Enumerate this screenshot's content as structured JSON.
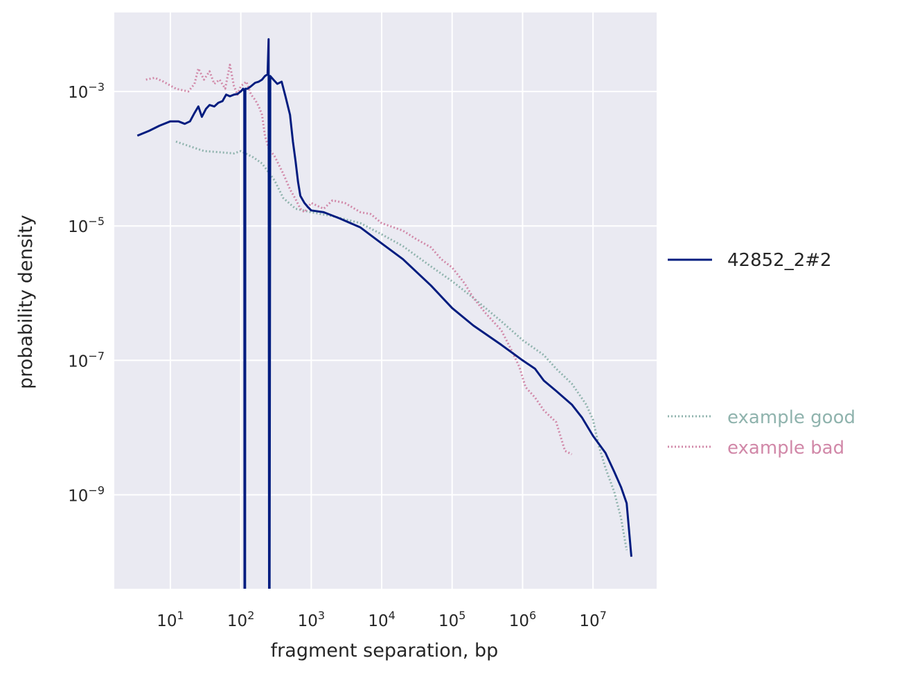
{
  "chart_data": {
    "type": "line",
    "title": "",
    "xlabel": "fragment separation, bp",
    "ylabel": "probability density",
    "xscale": "log",
    "yscale": "log",
    "xlim": [
      1.6,
      80000000
    ],
    "ylim": [
      4e-11,
      0.015
    ],
    "grid": true,
    "background": "#eaeaf2",
    "xticks": [
      {
        "value": 10,
        "base": "10",
        "exp": "1"
      },
      {
        "value": 100,
        "base": "10",
        "exp": "2"
      },
      {
        "value": 1000,
        "base": "10",
        "exp": "3"
      },
      {
        "value": 10000,
        "base": "10",
        "exp": "4"
      },
      {
        "value": 100000,
        "base": "10",
        "exp": "5"
      },
      {
        "value": 1000000,
        "base": "10",
        "exp": "6"
      },
      {
        "value": 10000000,
        "base": "10",
        "exp": "7"
      }
    ],
    "yticks": [
      {
        "value": 0.001,
        "base": "10",
        "exp": "−3"
      },
      {
        "value": 1e-05,
        "base": "10",
        "exp": "−5"
      },
      {
        "value": 1e-07,
        "base": "10",
        "exp": "−7"
      },
      {
        "value": 1e-09,
        "base": "10",
        "exp": "−9"
      }
    ],
    "series": [
      {
        "name": "42852_2#2",
        "color": "#001c7f",
        "style": "solid",
        "legend_position": "right-middle",
        "points": [
          [
            3.4,
            0.00022
          ],
          [
            5,
            0.00026
          ],
          [
            7,
            0.00031
          ],
          [
            10,
            0.00036
          ],
          [
            13,
            0.00036
          ],
          [
            16,
            0.00033
          ],
          [
            19,
            0.00036
          ],
          [
            22,
            0.00048
          ],
          [
            25,
            0.0006
          ],
          [
            28,
            0.00042
          ],
          [
            32,
            0.00055
          ],
          [
            36,
            0.00063
          ],
          [
            42,
            0.0006
          ],
          [
            48,
            0.00068
          ],
          [
            55,
            0.00072
          ],
          [
            62,
            0.0009
          ],
          [
            70,
            0.00085
          ],
          [
            80,
            0.0009
          ],
          [
            90,
            0.00092
          ],
          [
            100,
            0.001
          ],
          [
            108,
            0.0011
          ],
          [
            112,
            0.001
          ],
          [
            113,
            4e-11
          ],
          [
            115,
            4e-11
          ],
          [
            116,
            0.0011
          ],
          [
            125,
            0.0011
          ],
          [
            140,
            0.0012
          ],
          [
            160,
            0.00135
          ],
          [
            180,
            0.0014
          ],
          [
            200,
            0.0015
          ],
          [
            220,
            0.0017
          ],
          [
            240,
            0.0018
          ],
          [
            248,
            0.006
          ],
          [
            252,
            4e-11
          ],
          [
            256,
            4e-11
          ],
          [
            262,
            0.0017
          ],
          [
            290,
            0.0015
          ],
          [
            330,
            0.0013
          ],
          [
            380,
            0.0014
          ],
          [
            430,
            0.00085
          ],
          [
            500,
            0.00045
          ],
          [
            550,
            0.00018
          ],
          [
            600,
            9e-05
          ],
          [
            650,
            4.5e-05
          ],
          [
            700,
            2.8e-05
          ],
          [
            800,
            2.2e-05
          ],
          [
            900,
            1.9e-05
          ],
          [
            1000,
            1.7e-05
          ],
          [
            1500,
            1.6e-05
          ],
          [
            2500,
            1.3e-05
          ],
          [
            5000,
            9.5e-06
          ],
          [
            10000,
            5.5e-06
          ],
          [
            20000,
            3.2e-06
          ],
          [
            50000,
            1.3e-06
          ],
          [
            100000,
            6e-07
          ],
          [
            200000,
            3.3e-07
          ],
          [
            500000,
            1.7e-07
          ],
          [
            1000000,
            1e-07
          ],
          [
            1500000,
            7.5e-08
          ],
          [
            2000000,
            5e-08
          ],
          [
            3000000,
            3.5e-08
          ],
          [
            5000000,
            2.2e-08
          ],
          [
            7000000,
            1.4e-08
          ],
          [
            10000000,
            7.5e-09
          ],
          [
            15000000,
            4.2e-09
          ],
          [
            20000000,
            2.2e-09
          ],
          [
            25000000,
            1.3e-09
          ],
          [
            30000000,
            7.5e-10
          ],
          [
            35000000,
            1.2e-10
          ]
        ]
      },
      {
        "name": "example good",
        "color": "#8fb3ad",
        "style": "dotted",
        "legend_position": "right-lower",
        "points": [
          [
            12,
            0.00018
          ],
          [
            20,
            0.00015
          ],
          [
            30,
            0.00013
          ],
          [
            50,
            0.000125
          ],
          [
            80,
            0.00012
          ],
          [
            100,
            0.00013
          ],
          [
            150,
            0.000105
          ],
          [
            200,
            8.5e-05
          ],
          [
            300,
            4.8e-05
          ],
          [
            400,
            2.6e-05
          ],
          [
            600,
            1.8e-05
          ],
          [
            1000,
            1.6e-05
          ],
          [
            2000,
            1.4e-05
          ],
          [
            5000,
            1.1e-05
          ],
          [
            10000,
            7.5e-06
          ],
          [
            20000,
            5e-06
          ],
          [
            50000,
            2.5e-06
          ],
          [
            100000,
            1.5e-06
          ],
          [
            200000,
            8.5e-07
          ],
          [
            500000,
            3.8e-07
          ],
          [
            1000000,
            2e-07
          ],
          [
            2000000,
            1.2e-07
          ],
          [
            3000000,
            7.5e-08
          ],
          [
            5000000,
            4.5e-08
          ],
          [
            8000000,
            2.2e-08
          ],
          [
            10000000,
            1.3e-08
          ],
          [
            12000000,
            5.5e-09
          ],
          [
            15000000,
            2.5e-09
          ],
          [
            20000000,
            1.1e-09
          ],
          [
            25000000,
            4.5e-10
          ],
          [
            30000000,
            1.5e-10
          ]
        ]
      },
      {
        "name": "example bad",
        "color": "#d188a8",
        "style": "dotted",
        "legend_position": "right-lower",
        "points": [
          [
            4.5,
            0.0015
          ],
          [
            6,
            0.0016
          ],
          [
            8,
            0.0014
          ],
          [
            12,
            0.0011
          ],
          [
            18,
            0.001
          ],
          [
            22,
            0.0013
          ],
          [
            25,
            0.0022
          ],
          [
            30,
            0.0015
          ],
          [
            36,
            0.002
          ],
          [
            42,
            0.0013
          ],
          [
            50,
            0.0015
          ],
          [
            60,
            0.0011
          ],
          [
            70,
            0.0025
          ],
          [
            80,
            0.0012
          ],
          [
            90,
            0.0009
          ],
          [
            100,
            0.0012
          ],
          [
            120,
            0.0014
          ],
          [
            140,
            0.0009
          ],
          [
            160,
            0.00075
          ],
          [
            180,
            0.0006
          ],
          [
            200,
            0.00045
          ],
          [
            220,
            0.00022
          ],
          [
            250,
            0.00014
          ],
          [
            300,
            0.00011
          ],
          [
            400,
            6e-05
          ],
          [
            500,
            3.5e-05
          ],
          [
            600,
            2.5e-05
          ],
          [
            700,
            1.8e-05
          ],
          [
            800,
            1.6e-05
          ],
          [
            1000,
            2.2e-05
          ],
          [
            1500,
            1.8e-05
          ],
          [
            2000,
            2.4e-05
          ],
          [
            3000,
            2.2e-05
          ],
          [
            5000,
            1.6e-05
          ],
          [
            7000,
            1.5e-05
          ],
          [
            10000,
            1.1e-05
          ],
          [
            20000,
            8.5e-06
          ],
          [
            30000,
            6.5e-06
          ],
          [
            50000,
            4.8e-06
          ],
          [
            70000,
            3.2e-06
          ],
          [
            100000,
            2.4e-06
          ],
          [
            150000,
            1.4e-06
          ],
          [
            200000,
            8.5e-07
          ],
          [
            300000,
            5e-07
          ],
          [
            500000,
            2.8e-07
          ],
          [
            700000,
            1.4e-07
          ],
          [
            900000,
            8e-08
          ],
          [
            1100000,
            4e-08
          ],
          [
            1500000,
            2.8e-08
          ],
          [
            2000000,
            1.8e-08
          ],
          [
            3000000,
            1.2e-08
          ],
          [
            4000000,
            4.5e-09
          ],
          [
            5000000,
            4e-09
          ]
        ]
      }
    ]
  }
}
